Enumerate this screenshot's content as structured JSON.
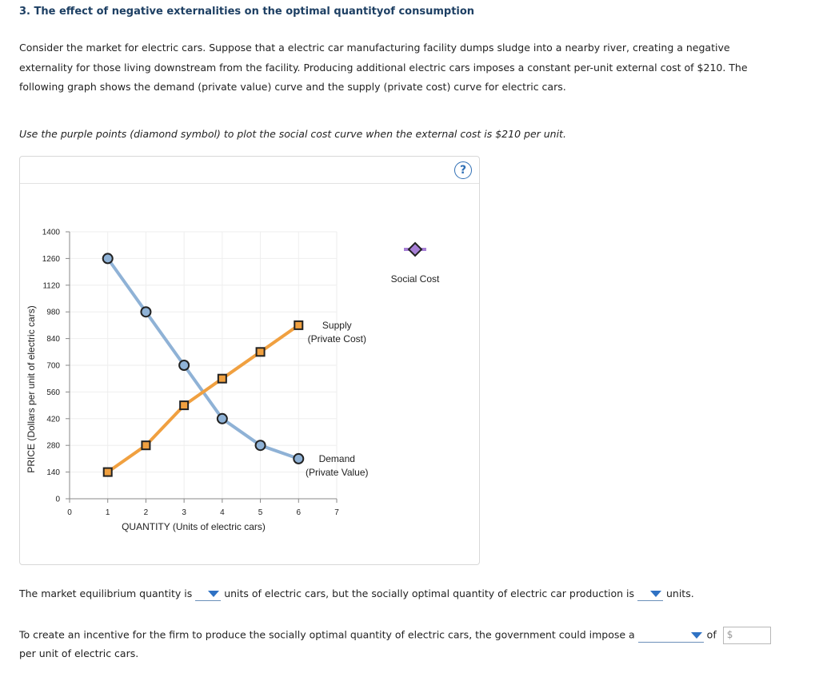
{
  "heading": "3. The effect of negative externalities on the optimal quantityof consumption",
  "intro": {
    "line1": "Consider the market for electric cars. Suppose that a electric car manufacturing facility dumps sludge into a nearby river, creating a negative",
    "line2": "externality for those living downstream from the facility. Producing additional electric cars imposes a constant per-unit external cost of $210. The",
    "line3": "following graph shows the demand (private value) curve and the supply (private cost) curve for electric cars."
  },
  "instruction": "Use the purple points (diamond symbol) to plot the social cost curve when the external cost is $210 per unit.",
  "help_icon": "?",
  "questions": {
    "q1_part1": "The market equilibrium quantity is",
    "q1_part2": "units of electric cars, but the socially optimal quantity of electric car production is",
    "q1_part3": "units.",
    "q2_part1": "To create an incentive for the firm to produce the socially optimal quantity of electric cars, the government could impose a",
    "q2_part2": "of",
    "q2_part3": "per unit of electric cars.",
    "currency_symbol": "$"
  },
  "chart_data": {
    "type": "line",
    "xlabel": "QUANTITY (Units of electric cars)",
    "ylabel": "PRICE (Dollars per unit of electric cars)",
    "xlim": [
      0,
      7
    ],
    "ylim": [
      0,
      1400
    ],
    "x_ticks": [
      0,
      1,
      2,
      3,
      4,
      5,
      6,
      7
    ],
    "y_ticks": [
      0,
      140,
      280,
      420,
      560,
      700,
      840,
      980,
      1120,
      1260,
      1400
    ],
    "grid": true,
    "series": [
      {
        "name": "Demand",
        "label_line1": "Demand",
        "label_line2": "(Private Value)",
        "color": "#8fb2d6",
        "marker": "circle",
        "marker_fill": "#8fb2d6",
        "points": [
          [
            1,
            1260
          ],
          [
            2,
            980
          ],
          [
            3,
            700
          ],
          [
            4,
            420
          ],
          [
            5,
            280
          ],
          [
            6,
            210
          ]
        ]
      },
      {
        "name": "Supply",
        "label_line1": "Supply",
        "label_line2": "(Private Cost)",
        "color": "#f0a040",
        "marker": "square",
        "marker_fill": "#f0a040",
        "points": [
          [
            1,
            140
          ],
          [
            2,
            280
          ],
          [
            3,
            490
          ],
          [
            4,
            630
          ],
          [
            5,
            770
          ],
          [
            6,
            910
          ]
        ]
      }
    ],
    "palette_tool": {
      "name": "Social Cost",
      "label": "Social Cost",
      "color": "#a77fd6",
      "marker": "diamond"
    }
  }
}
